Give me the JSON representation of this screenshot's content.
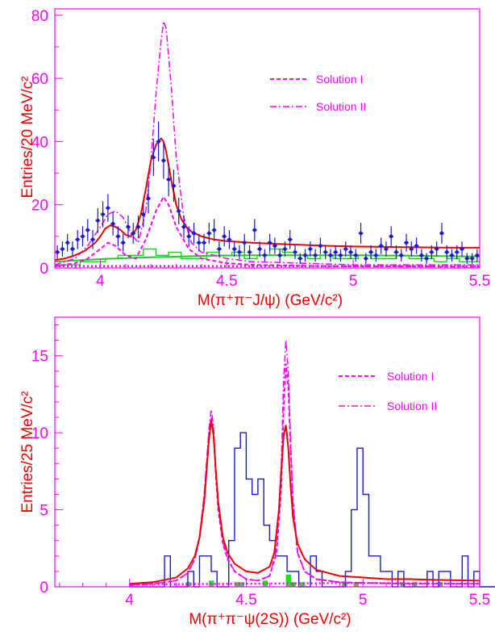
{
  "colors": {
    "frame": "#ff00ff",
    "axis_text": "#ff00ff",
    "ylabel": "#ee0000",
    "fit": "#ee0000",
    "solution": "#ff00ff",
    "data_points": "#1a1acc",
    "histogram": "#1a1acc",
    "background_hist": "#22cc22",
    "background_fill": "#22dd22"
  },
  "chart_data": [
    {
      "type": "scatter",
      "xlabel": "M(π⁺π⁻J/ψ) (GeV/c²)",
      "ylabel": "Entries/20 MeV/c²",
      "xlim": [
        3.82,
        5.5
      ],
      "ylim": [
        0,
        82
      ],
      "x_ticks": [
        "4",
        "4.5",
        "5",
        "5.5"
      ],
      "x_tick_values": [
        4,
        4.5,
        5,
        5.5
      ],
      "y_ticks": [
        "0",
        "20",
        "40",
        "60",
        "80"
      ],
      "y_tick_values": [
        0,
        20,
        40,
        60,
        80
      ],
      "legend": [
        {
          "label": "Solution I",
          "style": "dashed"
        },
        {
          "label": "Solution II",
          "style": "dash-dot"
        }
      ],
      "data_points": {
        "x": [
          3.83,
          3.85,
          3.87,
          3.89,
          3.91,
          3.93,
          3.95,
          3.97,
          3.99,
          4.01,
          4.03,
          4.05,
          4.07,
          4.09,
          4.11,
          4.13,
          4.15,
          4.17,
          4.19,
          4.21,
          4.23,
          4.25,
          4.27,
          4.29,
          4.31,
          4.33,
          4.35,
          4.37,
          4.39,
          4.41,
          4.43,
          4.45,
          4.47,
          4.49,
          4.51,
          4.53,
          4.55,
          4.57,
          4.59,
          4.61,
          4.63,
          4.65,
          4.67,
          4.69,
          4.71,
          4.73,
          4.75,
          4.77,
          4.79,
          4.81,
          4.83,
          4.85,
          4.87,
          4.89,
          4.91,
          4.93,
          4.95,
          4.97,
          4.99,
          5.01,
          5.03,
          5.05,
          5.07,
          5.09,
          5.11,
          5.13,
          5.15,
          5.17,
          5.19,
          5.21,
          5.23,
          5.25,
          5.27,
          5.29,
          5.31,
          5.33,
          5.35,
          5.37,
          5.39,
          5.41,
          5.43,
          5.45,
          5.47,
          5.49
        ],
        "y": [
          5,
          6,
          8,
          6,
          9,
          10,
          12,
          9,
          15,
          17,
          19,
          14,
          10,
          8,
          13,
          11,
          13,
          17,
          22,
          35,
          40,
          34,
          28,
          26,
          18,
          13,
          10,
          11,
          8,
          8,
          11,
          12,
          6,
          10,
          9,
          6,
          5,
          8,
          5,
          12,
          6,
          4,
          8,
          7,
          4,
          6,
          9,
          5,
          3,
          4,
          6,
          4,
          7,
          5,
          4,
          5,
          4,
          6,
          5,
          4,
          11,
          3,
          5,
          4,
          7,
          6,
          10,
          5,
          4,
          8,
          6,
          7,
          4,
          3,
          5,
          6,
          11,
          5,
          4,
          5,
          6,
          3,
          3,
          4
        ],
        "yerr": [
          2.2,
          2.4,
          2.8,
          2.4,
          3,
          3.2,
          3.5,
          3,
          3.9,
          4.1,
          4.4,
          3.7,
          3.2,
          2.8,
          3.6,
          3.3,
          3.6,
          4.1,
          4.7,
          5.9,
          6.3,
          5.8,
          5.3,
          5.1,
          4.2,
          3.6,
          3.2,
          3.3,
          2.8,
          2.8,
          3.3,
          3.5,
          2.4,
          3.2,
          3,
          2.4,
          2.2,
          2.8,
          2.2,
          3.5,
          2.4,
          2,
          2.8,
          2.6,
          2,
          2.4,
          3,
          2.2,
          1.7,
          2,
          2.4,
          2,
          2.6,
          2.2,
          2,
          2.2,
          2,
          2.4,
          2.2,
          2,
          3.3,
          1.7,
          2.2,
          2,
          2.6,
          2.4,
          3.2,
          2.2,
          2,
          2.8,
          2.4,
          2.6,
          2,
          1.7,
          2.2,
          2.4,
          3.3,
          2.2,
          2,
          2.2,
          2.4,
          1.7,
          1.7,
          2
        ]
      },
      "fit_total": {
        "x": [
          3.82,
          3.86,
          3.9,
          3.94,
          3.98,
          4.0,
          4.02,
          4.04,
          4.06,
          4.08,
          4.1,
          4.12,
          4.14,
          4.16,
          4.18,
          4.2,
          4.22,
          4.24,
          4.25,
          4.26,
          4.28,
          4.3,
          4.32,
          4.34,
          4.36,
          4.4,
          4.45,
          4.5,
          4.6,
          4.7,
          4.8,
          4.9,
          5.0,
          5.1,
          5.2,
          5.3,
          5.4,
          5.5
        ],
        "y": [
          2.5,
          3,
          4,
          5.5,
          8,
          10,
          12.5,
          13.5,
          13,
          12,
          10.5,
          10,
          12,
          17,
          25,
          34,
          39,
          41,
          40,
          37,
          28,
          20,
          15.5,
          13,
          11.5,
          10,
          9,
          8.5,
          8,
          7.6,
          7.3,
          7,
          6.8,
          6.7,
          6.6,
          6.5,
          6.4,
          6.4
        ]
      },
      "solution_I": {
        "x": [
          3.82,
          3.9,
          3.95,
          4.0,
          4.03,
          4.06,
          4.1,
          4.14,
          4.18,
          4.22,
          4.25,
          4.27,
          4.3,
          4.35,
          4.4,
          4.5,
          4.6,
          4.8,
          5.0,
          5.2,
          5.5
        ],
        "y": [
          0.5,
          1.5,
          3,
          6,
          8,
          7,
          4,
          3,
          9,
          18,
          22.5,
          20,
          13,
          6,
          3,
          1.5,
          1,
          0.7,
          0.5,
          0.5,
          0.4
        ]
      },
      "solution_II": {
        "x": [
          3.82,
          3.9,
          3.95,
          4.0,
          4.03,
          4.06,
          4.09,
          4.12,
          4.15,
          4.18,
          4.2,
          4.22,
          4.24,
          4.25,
          4.26,
          4.28,
          4.3,
          4.33,
          4.36,
          4.4,
          4.5,
          4.6,
          4.8,
          5.0,
          5.2,
          5.5
        ],
        "y": [
          1,
          3,
          7,
          13,
          17,
          18,
          16,
          11,
          8,
          18,
          34,
          55,
          72,
          78,
          76,
          58,
          35,
          16,
          8,
          5,
          3,
          2,
          1.5,
          1,
          1,
          1
        ]
      },
      "background_hist": {
        "x": [
          3.82,
          3.87,
          3.92,
          3.97,
          4.02,
          4.07,
          4.12,
          4.17,
          4.22,
          4.27,
          4.32,
          4.37,
          4.42,
          4.47,
          4.52,
          4.57,
          4.62,
          4.67,
          4.72,
          4.77,
          4.82,
          4.87,
          4.92,
          4.97,
          5.02,
          5.07,
          5.12,
          5.17,
          5.22,
          5.27,
          5.32,
          5.37,
          5.42,
          5.47
        ],
        "y": [
          1,
          1,
          2,
          2,
          3,
          4,
          4,
          6,
          4,
          5,
          3,
          3,
          5,
          4,
          5,
          3,
          4,
          6,
          5,
          4,
          3,
          4,
          3,
          3,
          4,
          3,
          3,
          4,
          3,
          3,
          2,
          3,
          2,
          2
        ]
      },
      "background_fit": {
        "x": [
          3.82,
          4.0,
          4.2,
          4.4,
          4.6,
          4.8,
          5.0,
          5.2,
          5.4,
          5.5
        ],
        "y": [
          2,
          2.8,
          3.4,
          3.8,
          4,
          4,
          4,
          3.9,
          3.7,
          3.6
        ]
      },
      "dotted_floor": {
        "x": [
          3.82,
          4.0,
          4.5,
          5.0,
          5.5
        ],
        "y": [
          0.6,
          0.6,
          0.6,
          0.6,
          0.6
        ]
      }
    },
    {
      "type": "bar",
      "xlabel": "M(π⁺π⁻ψ(2S)) (GeV/c²)",
      "ylabel": "Entries/25 MeV/c²",
      "xlim": [
        3.68,
        5.5
      ],
      "ylim": [
        0,
        17.5
      ],
      "x_ticks": [
        "4",
        "4.5",
        "5",
        "5.5"
      ],
      "x_tick_values": [
        4,
        4.5,
        5,
        5.5
      ],
      "y_ticks": [
        "0",
        "5",
        "10",
        "15"
      ],
      "y_tick_values": [
        0,
        5,
        10,
        15
      ],
      "legend": [
        {
          "label": "Solution I",
          "style": "dashed"
        },
        {
          "label": "Solution II",
          "style": "dash-dot"
        }
      ],
      "histogram": {
        "bin_start": 4.0,
        "bin_width": 0.025,
        "counts": [
          0,
          0,
          0,
          0,
          0,
          0,
          2,
          0,
          0,
          0,
          1,
          0,
          2,
          2,
          1,
          0,
          0,
          3,
          9,
          10,
          7,
          6,
          7,
          4,
          3,
          2,
          2,
          1,
          1,
          0,
          0,
          2,
          1,
          0,
          0,
          0,
          0,
          1,
          5,
          9,
          6,
          2,
          2,
          1,
          1,
          0,
          1,
          0,
          0,
          0,
          0,
          1,
          0,
          1,
          1,
          0,
          0,
          2,
          0,
          1,
          0,
          0,
          0,
          1,
          0,
          0,
          2,
          0,
          1,
          0,
          1,
          1,
          0,
          0,
          2,
          1,
          1,
          0,
          1,
          0
        ]
      },
      "background_bins": {
        "x": [
          4.24,
          4.34,
          4.45,
          4.47,
          4.57,
          4.67,
          4.69,
          4.73,
          4.91,
          4.96,
          5.16,
          5.21,
          5.32
        ],
        "y": [
          0.3,
          0.4,
          0.3,
          0.3,
          0.4,
          0.8,
          0.3,
          0.3,
          0.3,
          0.3,
          0.3,
          0.3,
          0.3
        ]
      },
      "fit_total": {
        "x": [
          4.0,
          4.1,
          4.2,
          4.25,
          4.28,
          4.3,
          4.32,
          4.34,
          4.35,
          4.36,
          4.37,
          4.38,
          4.4,
          4.42,
          4.45,
          4.5,
          4.55,
          4.6,
          4.62,
          4.64,
          4.65,
          4.66,
          4.67,
          4.68,
          4.69,
          4.7,
          4.72,
          4.75,
          4.8,
          4.9,
          5.0,
          5.1,
          5.2,
          5.3,
          5.5
        ],
        "y": [
          0.2,
          0.3,
          0.6,
          1.2,
          2,
          3.2,
          5.5,
          9.5,
          10.8,
          9.8,
          7.5,
          5.5,
          3.2,
          2.2,
          1.5,
          1,
          0.9,
          1.3,
          2.2,
          5,
          7.5,
          9.8,
          10.5,
          9,
          6.5,
          4.5,
          2.8,
          1.8,
          1.1,
          0.7,
          0.6,
          0.5,
          0.5,
          0.45,
          0.4
        ]
      },
      "solution_I": {
        "x": [
          4.0,
          4.1,
          4.2,
          4.25,
          4.28,
          4.3,
          4.32,
          4.34,
          4.35,
          4.36,
          4.37,
          4.38,
          4.4,
          4.42,
          4.45,
          4.5,
          4.55,
          4.6,
          4.63,
          4.65,
          4.66,
          4.67,
          4.68,
          4.69,
          4.7,
          4.72,
          4.75,
          4.8,
          4.9,
          5.0,
          5.2,
          5.5
        ],
        "y": [
          0.1,
          0.2,
          0.4,
          0.9,
          1.8,
          3.2,
          5.8,
          9.8,
          11,
          10,
          7.2,
          5,
          2.8,
          1.8,
          1,
          0.5,
          0.4,
          0.7,
          2.2,
          6.5,
          11.5,
          14.5,
          13,
          9,
          5.5,
          2.2,
          1,
          0.5,
          0.3,
          0.25,
          0.2,
          0.2
        ]
      },
      "solution_II": {
        "x": [
          4.0,
          4.1,
          4.2,
          4.25,
          4.28,
          4.3,
          4.32,
          4.34,
          4.35,
          4.36,
          4.37,
          4.38,
          4.4,
          4.42,
          4.45,
          4.5,
          4.55,
          4.6,
          4.63,
          4.65,
          4.66,
          4.67,
          4.68,
          4.69,
          4.7,
          4.72,
          4.75,
          4.8,
          4.9,
          5.0,
          5.2,
          5.5
        ],
        "y": [
          0.1,
          0.2,
          0.4,
          0.9,
          1.8,
          3.3,
          6,
          10.2,
          11.5,
          10.5,
          7.5,
          5.2,
          2.9,
          1.9,
          1,
          0.5,
          0.4,
          0.7,
          2.5,
          8,
          13.5,
          16,
          14,
          9.5,
          5.5,
          2.2,
          1,
          0.5,
          0.3,
          0.25,
          0.2,
          0.2
        ]
      },
      "dotted_floor": {
        "x": [
          4.0,
          4.5,
          5.0,
          5.5
        ],
        "y": [
          0.15,
          0.2,
          0.25,
          0.2
        ]
      }
    }
  ]
}
